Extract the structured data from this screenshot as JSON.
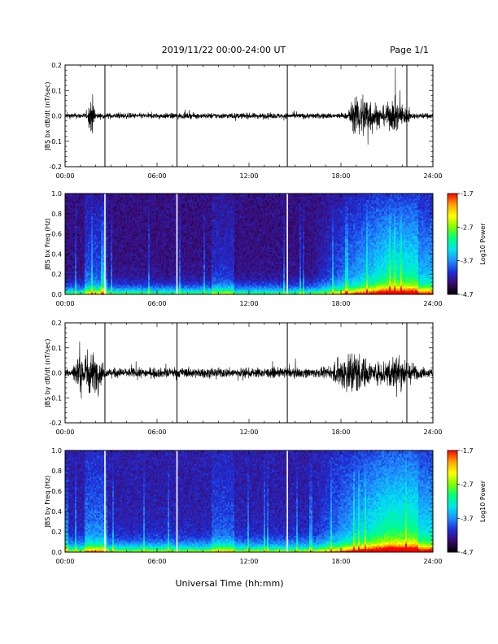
{
  "header": {
    "title": "2019/11/22  00:00-24:00 UT",
    "page": "Page 1/1"
  },
  "footer": {
    "xlabel": "Universal Time (hh:mm)"
  },
  "colors": {
    "trace": "#000000",
    "colormap": [
      "#000000",
      "#3b0a6e",
      "#1e2fd8",
      "#1e90ff",
      "#00e5ee",
      "#00ff7f",
      "#7fff00",
      "#ffff00",
      "#ffa500",
      "#ff0000"
    ]
  },
  "chart_data": [
    {
      "type": "line",
      "ylabel": "JBS bx dB/dt (nT/sec)",
      "ylim": [
        -0.2,
        0.2
      ],
      "yticks": [
        "0.2",
        "0.1",
        "0.0",
        "-0.1",
        "-0.2"
      ],
      "x_ticks": [
        "00:00",
        "06:00",
        "12:00",
        "18:00",
        "24:00"
      ],
      "xlim_hours": [
        0,
        24
      ],
      "spikes_hours": [
        2.6,
        7.3,
        14.5,
        22.3
      ],
      "bursts": [
        {
          "hours": [
            1.5,
            2.0
          ],
          "amplitude": 0.15
        },
        {
          "hours": [
            18.5,
            20.5
          ],
          "amplitude": 0.18
        },
        {
          "hours": [
            20.5,
            22.5
          ],
          "amplitude": 0.12
        }
      ],
      "baseline_amplitude": 0.02
    },
    {
      "type": "heatmap",
      "ylabel": "JBS bx Freq (Hz)",
      "ylim": [
        0.0,
        1.0
      ],
      "yticks": [
        "1.0",
        "0.8",
        "0.6",
        "0.4",
        "0.2",
        "0.0"
      ],
      "x_ticks": [
        "00:00",
        "06:00",
        "12:00",
        "18:00",
        "24:00"
      ],
      "xlim_hours": [
        0,
        24
      ],
      "colorbar": {
        "label": "Log10 Power",
        "ticks": [
          "-1.7",
          "-2.7",
          "-3.7",
          "-4.7"
        ],
        "range": [
          -4.7,
          -1.7
        ]
      },
      "gaps_hours": [
        2.6,
        7.3,
        14.5
      ]
    },
    {
      "type": "line",
      "ylabel": "JBS by dB/dt (nT/sec)",
      "ylim": [
        -0.2,
        0.2
      ],
      "yticks": [
        "0.2",
        "0.1",
        "0.0",
        "-0.1",
        "-0.2"
      ],
      "x_ticks": [
        "00:00",
        "06:00",
        "12:00",
        "18:00",
        "24:00"
      ],
      "xlim_hours": [
        0,
        24
      ],
      "spikes_hours": [
        2.6,
        7.3,
        14.5,
        22.3
      ],
      "bursts": [
        {
          "hours": [
            0.5,
            2.5
          ],
          "amplitude": 0.18
        },
        {
          "hours": [
            17.5,
            20.0
          ],
          "amplitude": 0.18
        },
        {
          "hours": [
            20.0,
            23.0
          ],
          "amplitude": 0.14
        }
      ],
      "baseline_amplitude": 0.035
    },
    {
      "type": "heatmap",
      "ylabel": "JBS by Freq (Hz)",
      "ylim": [
        0.0,
        1.0
      ],
      "yticks": [
        "1.0",
        "0.8",
        "0.6",
        "0.4",
        "0.2",
        "0.0"
      ],
      "x_ticks": [
        "00:00",
        "06:00",
        "12:00",
        "18:00",
        "24:00"
      ],
      "xlim_hours": [
        0,
        24
      ],
      "colorbar": {
        "label": "Log10 Power",
        "ticks": [
          "-1.7",
          "-2.7",
          "-3.7",
          "-4.7"
        ],
        "range": [
          -4.7,
          -1.7
        ]
      },
      "gaps_hours": [
        2.6,
        7.3,
        14.5
      ]
    }
  ]
}
